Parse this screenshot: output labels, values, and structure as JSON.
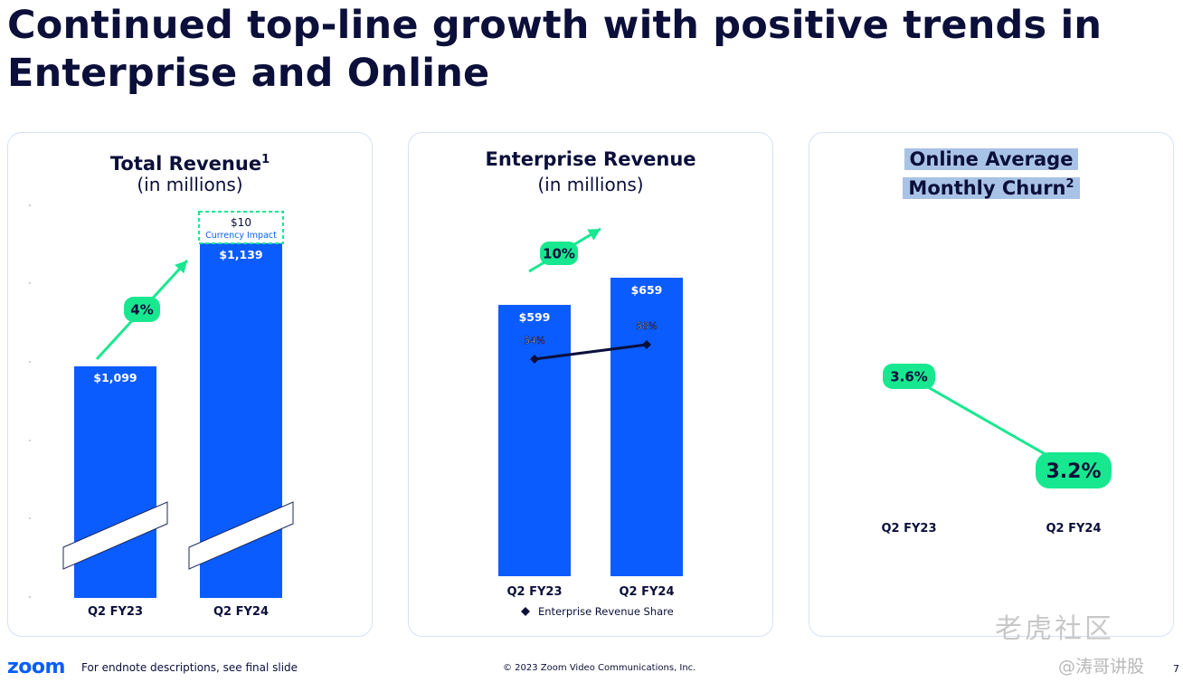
{
  "title": {
    "line1": "Continued top-line growth with positive trends in",
    "line2": "Enterprise and Online"
  },
  "footer": {
    "logo": "zoom",
    "note": "For endnote descriptions, see final slide",
    "copyright": "© 2023 Zoom Video Communications, Inc.",
    "page": "7"
  },
  "watermark": {
    "line1": "老虎社区",
    "line2": "@涛哥讲股"
  },
  "colors": {
    "bar": "#0b5cff",
    "accent": "#17e88f",
    "navy": "#0b0f3a"
  },
  "chart_data": [
    {
      "type": "bar",
      "title": "Total Revenue",
      "title_sup": "1",
      "subtitle": "(in millions)",
      "categories": [
        "Q2 FY23",
        "Q2 FY24"
      ],
      "values": [
        1099,
        1139
      ],
      "value_labels": [
        "$1,099",
        "$1,139"
      ],
      "ylim": [
        0,
        1160
      ],
      "axis_break": true,
      "growth_label": "4%",
      "currency_impact": {
        "value_label": "$10",
        "label": "Currency Impact",
        "value": 10
      }
    },
    {
      "type": "bar",
      "title": "Enterprise Revenue",
      "subtitle": "(in millions)",
      "categories": [
        "Q2 FY23",
        "Q2 FY24"
      ],
      "values": [
        599,
        659
      ],
      "value_labels": [
        "$599",
        "$659"
      ],
      "ylim": [
        0,
        680
      ],
      "growth_label": "10%",
      "line_series": {
        "name": "Enterprise Revenue Share",
        "values": [
          54,
          58
        ],
        "labels": [
          "54%",
          "58%"
        ]
      }
    },
    {
      "type": "line",
      "title_line1": "Online Average",
      "title_line2": "Monthly Churn",
      "title_sup": "2",
      "categories": [
        "Q2 FY23",
        "Q2 FY24"
      ],
      "values": [
        3.6,
        3.2
      ],
      "value_labels": [
        "3.6%",
        "3.2%"
      ]
    }
  ]
}
